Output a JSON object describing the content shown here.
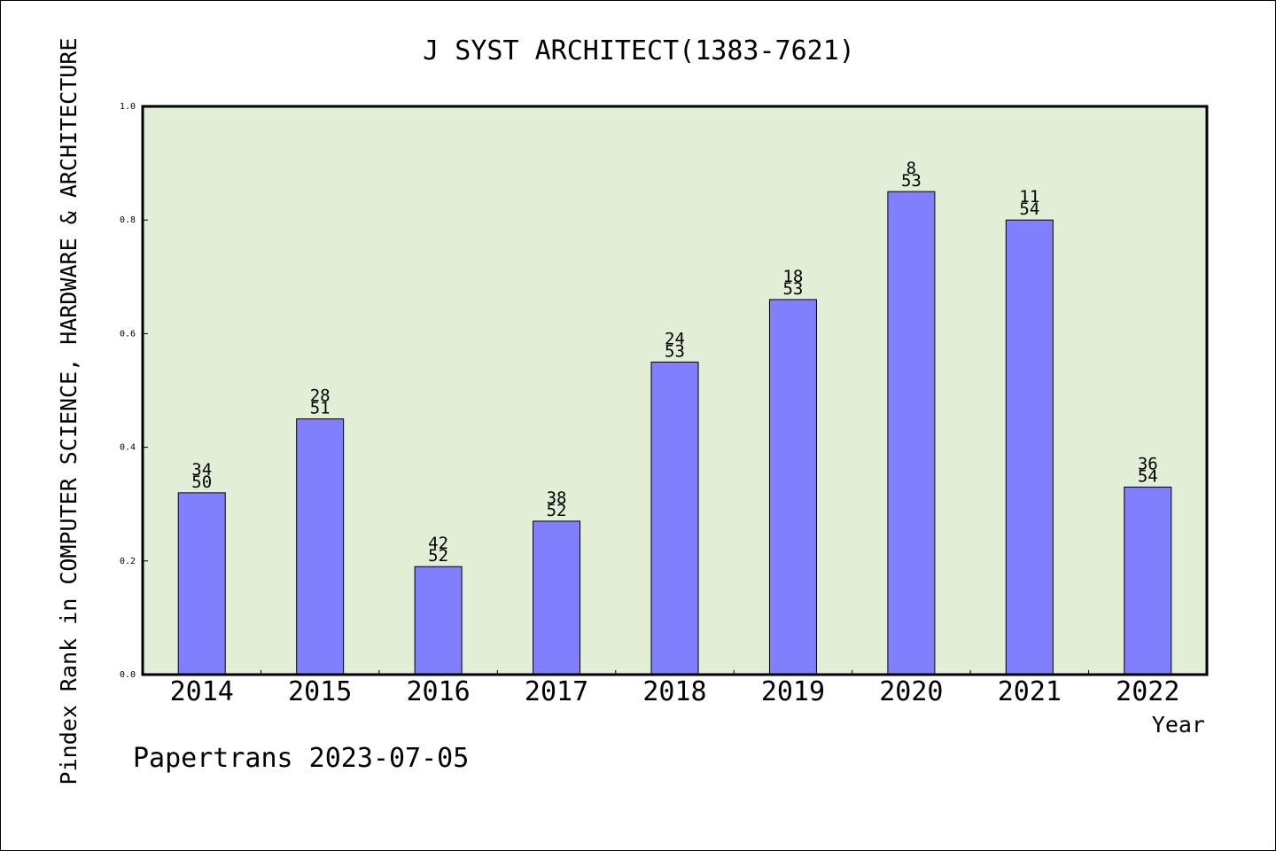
{
  "chart_data": {
    "type": "bar",
    "title": "J SYST ARCHITECT(1383-7621)",
    "xlabel": "Year",
    "ylabel": "Pindex Rank in COMPUTER SCIENCE, HARDWARE & ARCHITECTURE",
    "ylim": [
      0,
      1.0
    ],
    "yticks": [
      "0.0",
      "0.2",
      "0.4",
      "0.6",
      "0.8",
      "1.0"
    ],
    "categories": [
      "2014",
      "2015",
      "2016",
      "2017",
      "2018",
      "2019",
      "2020",
      "2021",
      "2022"
    ],
    "values": [
      0.32,
      0.45,
      0.19,
      0.27,
      0.55,
      0.66,
      0.85,
      0.8,
      0.33
    ],
    "ranks": [
      "34",
      "28",
      "42",
      "38",
      "24",
      "18",
      "8",
      "11",
      "36"
    ],
    "totals": [
      "50",
      "51",
      "52",
      "52",
      "53",
      "53",
      "53",
      "54",
      "54"
    ],
    "grid": false,
    "colors": {
      "bar": "#8080ff",
      "plot_background": "#e2efd6",
      "axis": "#000000"
    }
  },
  "footer": {
    "credit": "Papertrans 2023-07-05"
  }
}
